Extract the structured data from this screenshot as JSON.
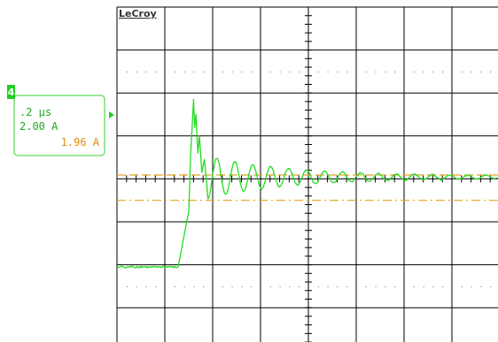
{
  "scope": {
    "brand": "LeCroy",
    "channel_badge": "4",
    "readout": {
      "timebase": ".2 µs",
      "volts_per_div": "2.00 A",
      "cursor_value": "1.96 A"
    }
  },
  "colors": {
    "trace": "#22dd22",
    "cursor": "#e6a020",
    "grid": "#000000",
    "marker": "#22cc22",
    "readout_border": "#33cc33",
    "readout_text": "#22aa22",
    "cursor_text": "#e08a10"
  },
  "icons": {
    "channel_badge": "channel-4-badge-icon",
    "trigger_marker": "trigger-level-arrow-icon"
  },
  "chart_data": {
    "type": "line",
    "description_source": "oscilloscope waveform: step into a damped ringing current",
    "x_units_per_div": 0.2,
    "y_units_per_div": 2.0,
    "grid": true,
    "x": [
      -0.3,
      -0.04,
      0.0,
      0.01,
      0.02,
      0.04,
      0.05,
      0.07,
      0.1,
      0.13,
      0.17,
      0.22,
      0.28,
      0.35,
      0.42,
      0.5,
      0.6,
      0.7,
      0.85,
      1.0,
      1.2,
      1.5,
      1.8
    ],
    "values": [
      -4.1,
      -4.1,
      -1.5,
      1.0,
      3.7,
      2.0,
      0.4,
      0.2,
      1.0,
      -0.6,
      0.4,
      -0.1,
      0.25,
      0.1,
      -0.05,
      0.15,
      0.05,
      0.1,
      0.06,
      0.06,
      0.08,
      0.07,
      0.08
    ],
    "cursor_levels": [
      0.18,
      -1.0
    ]
  }
}
